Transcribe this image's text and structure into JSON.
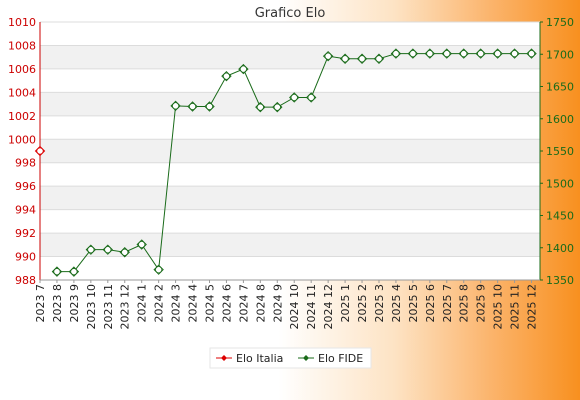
{
  "chart_data": {
    "type": "line",
    "title": "Grafico Elo",
    "x": [
      "2023 7",
      "2023 8",
      "2023 9",
      "2023 10",
      "2023 11",
      "2023 12",
      "2024 1",
      "2024 2",
      "2024 3",
      "2024 4",
      "2024 5",
      "2024 6",
      "2024 7",
      "2024 8",
      "2024 9",
      "2024 10",
      "2024 11",
      "2024 12",
      "2025 1",
      "2025 2",
      "2025 3",
      "2025 4",
      "2025 5",
      "2025 6",
      "2025 7",
      "2025 8",
      "2025 9",
      "2025 10",
      "2025 11",
      "2025 12"
    ],
    "y_left": {
      "ylim": [
        988,
        1010
      ],
      "ticks": [
        988,
        990,
        992,
        994,
        996,
        998,
        1000,
        1002,
        1004,
        1006,
        1008,
        1010
      ]
    },
    "y_right": {
      "ylim": [
        1350,
        1750
      ],
      "ticks": [
        1350,
        1400,
        1450,
        1500,
        1550,
        1600,
        1650,
        1700,
        1750
      ]
    },
    "grid": true,
    "legend_placement": "bottom",
    "series": [
      {
        "name": "Elo Italia",
        "axis": "left",
        "color": "#dd0000",
        "values": [
          999,
          null,
          null,
          null,
          null,
          null,
          null,
          null,
          null,
          null,
          null,
          null,
          null,
          null,
          null,
          null,
          null,
          null,
          null,
          null,
          null,
          null,
          null,
          null,
          null,
          null,
          null,
          null,
          null,
          null
        ]
      },
      {
        "name": "Elo FIDE",
        "axis": "right",
        "color": "#1a6b1a",
        "values": [
          null,
          1363,
          1363,
          1397,
          1397,
          1393,
          1405,
          1366,
          1620,
          1619,
          1619,
          1666,
          1677,
          1618,
          1618,
          1633,
          1633,
          1697,
          1693,
          1693,
          1693,
          1701,
          1701,
          1701,
          1701,
          1701,
          1701,
          1701,
          1701,
          1701
        ]
      }
    ]
  }
}
